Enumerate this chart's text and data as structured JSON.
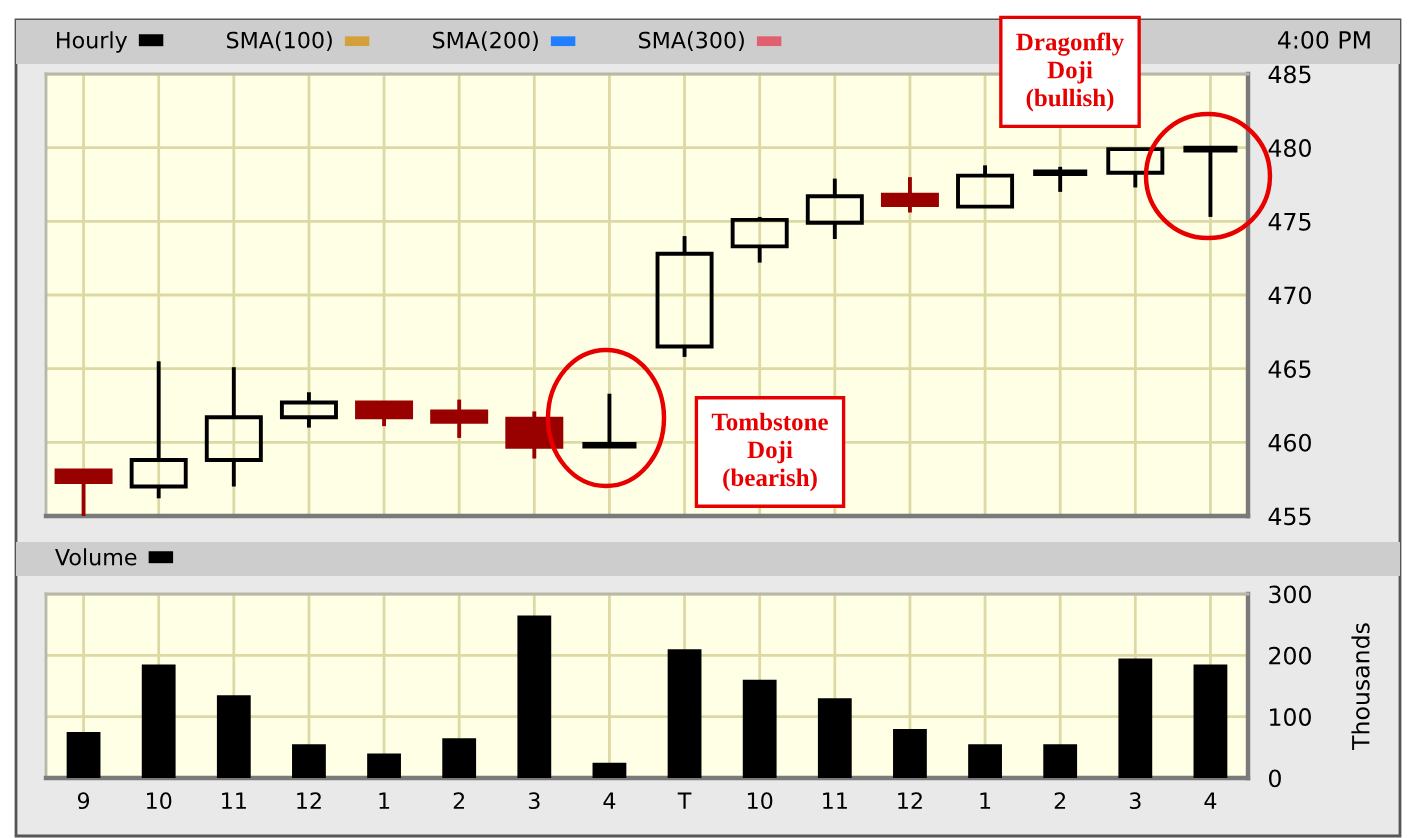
{
  "chart_data": [
    {
      "type": "candlestick",
      "categories": [
        null,
        null,
        null,
        null,
        null,
        null,
        null,
        null,
        null,
        null,
        null,
        null,
        null,
        null,
        null,
        null
      ],
      "series": [
        {
          "name": "Hourly",
          "color": "#000000",
          "colors": [
            "#990000",
            "#000000",
            "#000000",
            "#000000",
            "#990000",
            "#990000",
            "#990000",
            "#000000",
            "#000000",
            "#000000",
            "#000000",
            "#990000",
            "#000000",
            "#000000",
            "#000000",
            "#000000"
          ],
          "ohlc": [
            [
              458.1,
              458.1,
              455.0,
              457.3
            ],
            [
              457.0,
              465.5,
              456.2,
              458.8
            ],
            [
              458.8,
              465.1,
              457.0,
              461.7
            ],
            [
              461.7,
              463.4,
              461.0,
              462.7
            ],
            [
              462.7,
              462.7,
              461.1,
              461.7
            ],
            [
              462.1,
              462.9,
              460.3,
              461.4
            ],
            [
              461.6,
              462.1,
              458.9,
              459.7
            ],
            [
              459.8,
              463.3,
              459.8,
              459.8
            ],
            [
              466.5,
              474.0,
              465.8,
              472.8
            ],
            [
              473.3,
              475.3,
              472.2,
              475.1
            ],
            [
              474.9,
              477.9,
              473.8,
              476.7
            ],
            [
              476.8,
              478.0,
              475.6,
              476.1
            ],
            [
              476.0,
              478.8,
              476.0,
              478.1
            ],
            [
              478.3,
              478.7,
              477.0,
              478.3
            ],
            [
              478.3,
              479.9,
              477.3,
              479.9
            ],
            [
              479.9,
              479.9,
              475.3,
              479.9
            ]
          ]
        },
        {
          "name": "SMA(100)",
          "type": "line",
          "color": "#d4a03c",
          "values": [
            null,
            null,
            null,
            null,
            null,
            null,
            null,
            null,
            null,
            null,
            null,
            null,
            null,
            null,
            null,
            null
          ]
        },
        {
          "name": "SMA(200)",
          "type": "line",
          "color": "#1f7fff",
          "values": [
            null,
            null,
            null,
            null,
            null,
            null,
            null,
            null,
            null,
            null,
            null,
            null,
            null,
            null,
            null,
            null
          ]
        },
        {
          "name": "SMA(300)",
          "type": "line",
          "color": "#e06070",
          "values": [
            null,
            null,
            null,
            null,
            null,
            null,
            null,
            null,
            null,
            null,
            null,
            null,
            null,
            null,
            null,
            null
          ]
        }
      ],
      "ylim": [
        455,
        485
      ],
      "yticks": [
        455,
        460,
        465,
        470,
        475,
        480,
        485
      ],
      "grid": true,
      "legend": "top left",
      "annotations": [
        "4:00 PM",
        "Tombstone\nDoji\n(bearish)",
        "Dragonfly\nDoji\n(bullish)"
      ]
    },
    {
      "type": "bar",
      "categories": [
        "9",
        "10",
        "11",
        "12",
        "1",
        "2",
        "3",
        "4",
        "T",
        "10",
        "11",
        "12",
        "1",
        "2",
        "3",
        "4"
      ],
      "series": [
        {
          "name": "Volume",
          "color": "#000000",
          "values": [
            75,
            185,
            135,
            55,
            40,
            65,
            265,
            25,
            210,
            160,
            130,
            80,
            55,
            55,
            195,
            185
          ]
        }
      ],
      "ylim": [
        0,
        300
      ],
      "yticks": [
        0,
        100,
        200,
        300
      ],
      "ylabel": "Thousands",
      "grid": true,
      "legend": "top left"
    }
  ]
}
